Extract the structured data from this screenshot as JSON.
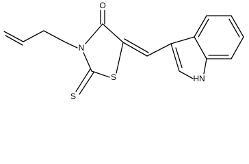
{
  "atoms": {
    "labels": [
      "O",
      "N",
      "S",
      "S",
      "HN"
    ]
  }
}
